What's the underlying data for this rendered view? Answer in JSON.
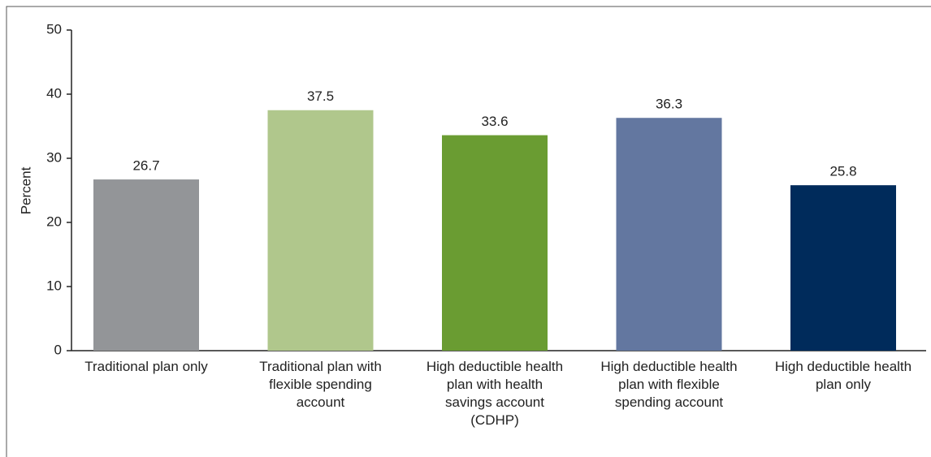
{
  "chart_data": {
    "type": "bar",
    "y_label": "Percent",
    "categories": [
      "Traditional plan only",
      "Traditional plan with flexible spending account",
      "High deductible health plan with health savings account (CDHP)",
      "High deductible health plan with flexible spending account",
      "High deductible health plan only"
    ],
    "values": [
      26.7,
      37.5,
      33.6,
      36.3,
      25.8
    ],
    "colors": [
      "#939598",
      "#b0c78c",
      "#6a9c32",
      "#6377a0",
      "#002b5b"
    ],
    "ylim": [
      0,
      50
    ],
    "yticks": [
      0,
      10,
      20,
      30,
      40,
      50
    ],
    "grid": false
  }
}
